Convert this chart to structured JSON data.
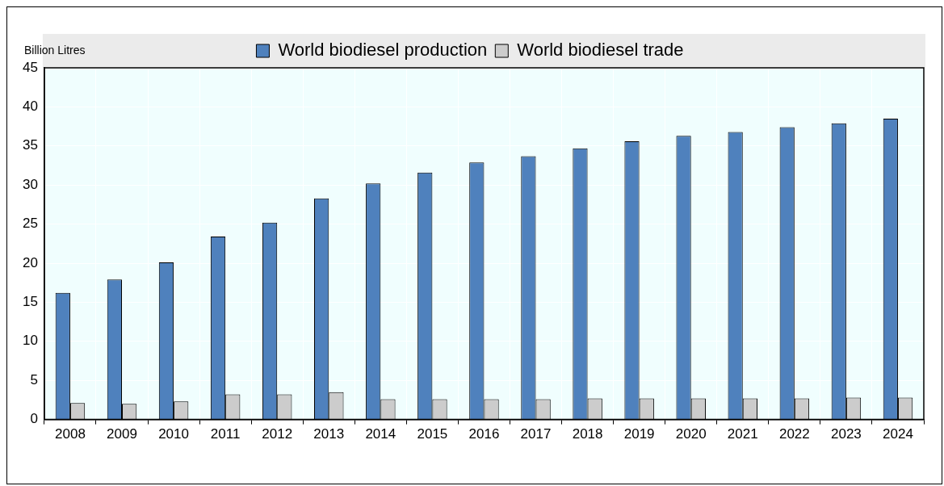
{
  "chart_data": {
    "type": "bar",
    "ylabel": "Billion Litres",
    "categories": [
      "2008",
      "2009",
      "2010",
      "2011",
      "2012",
      "2013",
      "2014",
      "2015",
      "2016",
      "2017",
      "2018",
      "2019",
      "2020",
      "2021",
      "2022",
      "2023",
      "2024"
    ],
    "series": [
      {
        "name": "World biodiesel production",
        "color": "#4f81bd",
        "values": [
          16.2,
          17.9,
          20.1,
          23.4,
          25.2,
          28.3,
          30.2,
          31.6,
          32.9,
          33.7,
          34.7,
          35.6,
          36.3,
          36.8,
          37.4,
          37.9,
          38.5
        ]
      },
      {
        "name": "World biodiesel trade",
        "color": "#cccccc",
        "values": [
          2.1,
          2.0,
          2.3,
          3.2,
          3.2,
          3.5,
          2.6,
          2.6,
          2.6,
          2.6,
          2.7,
          2.7,
          2.7,
          2.7,
          2.7,
          2.8,
          2.8
        ]
      }
    ],
    "ylim": [
      0,
      45
    ],
    "yticks": [
      0,
      5,
      10,
      15,
      20,
      25,
      30,
      35,
      40,
      45
    ],
    "grid": true,
    "legend": "top"
  }
}
